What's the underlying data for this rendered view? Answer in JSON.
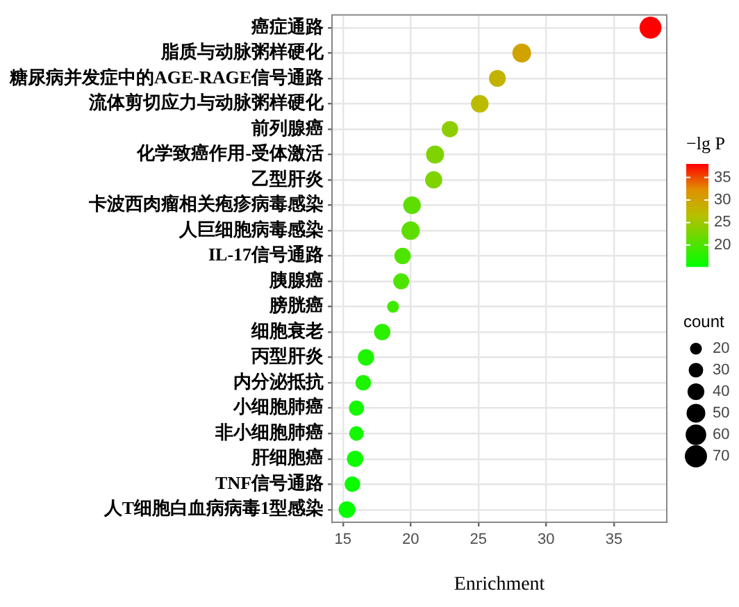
{
  "chart_data": {
    "type": "bubble",
    "xlabel": "Enrichment",
    "clabel": "−lg P",
    "legend_title": "count",
    "categories": [
      "癌症通路",
      "脂质与动脉粥样硬化",
      "糖尿病并发症中的AGE-RAGE信号通路",
      "流体剪切应力与动脉粥样硬化",
      "前列腺癌",
      "化学致癌作用-受体激活",
      "乙型肝炎",
      "卡波西肉瘤相关疱疹病毒感染",
      "人巨细胞病毒感染",
      "IL-17信号通路",
      "胰腺癌",
      "膀胱癌",
      "细胞衰老",
      "丙型肝炎",
      "内分泌抵抗",
      "小细胞肺癌",
      "非小细胞肺癌",
      "肝细胞癌",
      "TNF信号通路",
      "人T细胞白血病病毒1型感染"
    ],
    "values": [
      37.7,
      28.2,
      26.4,
      25.1,
      22.9,
      21.8,
      21.7,
      20.1,
      20.0,
      19.4,
      19.3,
      18.7,
      17.9,
      16.7,
      16.5,
      16.0,
      16.0,
      15.9,
      15.7,
      15.3
    ],
    "sizes": [
      68,
      50,
      40,
      44,
      38,
      46,
      42,
      44,
      48,
      38,
      36,
      20,
      38,
      38,
      34,
      32,
      30,
      38,
      34,
      40
    ],
    "cvalues": [
      38,
      30,
      28,
      27,
      24,
      23,
      23,
      21,
      21,
      20,
      20,
      19,
      18,
      17,
      17,
      16.5,
      16.5,
      16,
      16,
      15.5
    ],
    "size_legend": [
      20,
      30,
      40,
      50,
      60,
      70
    ],
    "clim": [
      15.2,
      38
    ],
    "cticks": [
      20,
      25,
      30,
      35
    ],
    "xlim": [
      14.2,
      38.9
    ],
    "xticks": [
      15,
      20,
      25,
      30,
      35
    ],
    "grid": true,
    "orientation": "horizontal"
  }
}
